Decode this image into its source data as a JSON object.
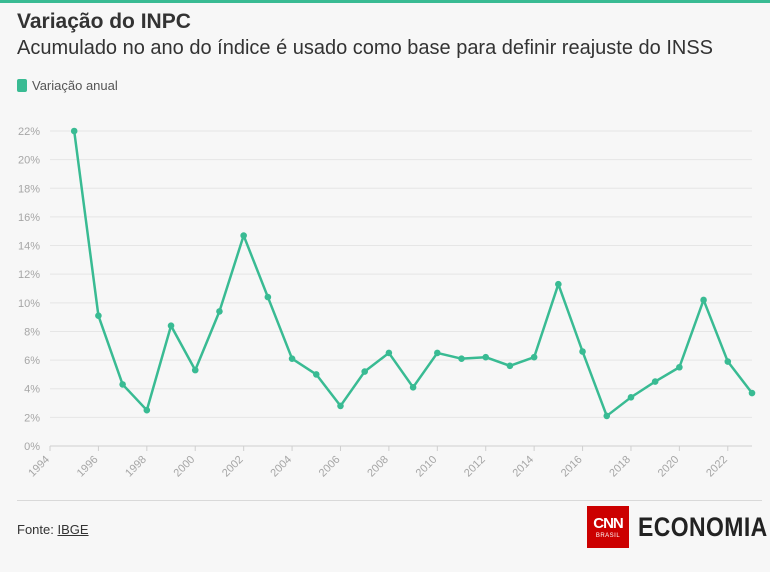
{
  "header": {
    "title": "Variação do INPC",
    "subtitle": "Acumulado no ano do índice é usado como base para definir reajuste do INSS"
  },
  "legend": {
    "label": "Variação anual",
    "color": "#39bb93"
  },
  "footer": {
    "source_prefix": "Fonte: ",
    "source_name": "IBGE",
    "logo_brand": "CNN",
    "logo_brand_sub": "BRASIL",
    "logo_section": "ECONOMIA"
  },
  "chart_data": {
    "type": "line",
    "title": "Variação do INPC",
    "subtitle": "Acumulado no ano do índice é usado como base para definir reajuste do INSS",
    "xlabel": "",
    "ylabel": "",
    "xlim": [
      1994,
      2023
    ],
    "ylim": [
      0,
      22
    ],
    "y_unit": "%",
    "x_ticks": [
      1994,
      1996,
      1998,
      2000,
      2002,
      2004,
      2006,
      2008,
      2010,
      2012,
      2014,
      2016,
      2018,
      2020,
      2022
    ],
    "y_ticks": [
      0,
      2,
      4,
      6,
      8,
      10,
      12,
      14,
      16,
      18,
      20,
      22
    ],
    "grid": true,
    "legend_position": "top-left",
    "series": [
      {
        "name": "Variação anual",
        "color": "#39bb93",
        "x": [
          1995,
          1996,
          1997,
          1998,
          1999,
          2000,
          2001,
          2002,
          2003,
          2004,
          2005,
          2006,
          2007,
          2008,
          2009,
          2010,
          2011,
          2012,
          2013,
          2014,
          2015,
          2016,
          2017,
          2018,
          2019,
          2020,
          2021,
          2022,
          2023
        ],
        "values": [
          22.0,
          9.1,
          4.3,
          2.5,
          8.4,
          5.3,
          9.4,
          14.7,
          10.4,
          6.1,
          5.0,
          2.8,
          5.2,
          6.5,
          4.1,
          6.5,
          6.1,
          6.2,
          5.6,
          6.2,
          11.3,
          6.6,
          2.1,
          3.4,
          4.5,
          5.5,
          10.2,
          5.9,
          3.7
        ]
      }
    ]
  }
}
